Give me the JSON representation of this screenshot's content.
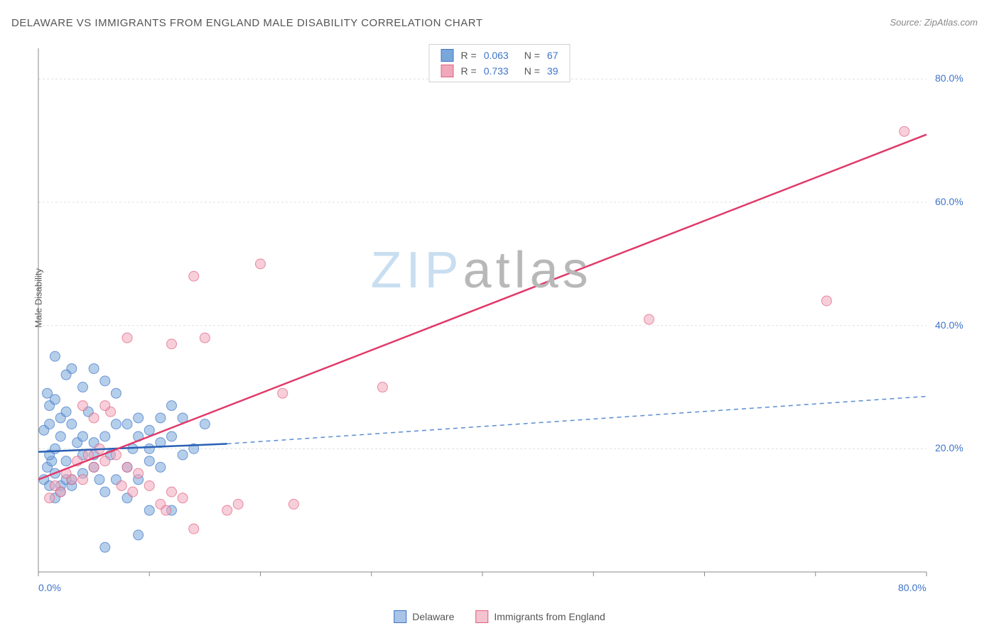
{
  "title": "DELAWARE VS IMMIGRANTS FROM ENGLAND MALE DISABILITY CORRELATION CHART",
  "source": "Source: ZipAtlas.com",
  "y_axis_label": "Male Disability",
  "watermark": {
    "part1": "ZIP",
    "part2": "atlas"
  },
  "chart": {
    "type": "scatter",
    "xlim": [
      0,
      80
    ],
    "ylim": [
      0,
      85
    ],
    "background_color": "#ffffff",
    "grid_color": "#e0e0e0",
    "axis_line_color": "#888888",
    "x_ticks": [
      0,
      10,
      20,
      30,
      40,
      50,
      60,
      70,
      80
    ],
    "x_tick_labels": {
      "0": "0.0%",
      "80": "80.0%"
    },
    "y_ticks": [
      20,
      40,
      60,
      80
    ],
    "y_tick_labels": {
      "20": "20.0%",
      "40": "40.0%",
      "60": "60.0%",
      "80": "80.0%"
    },
    "tick_label_color": "#3e74c9",
    "tick_label_fontsize": 14,
    "marker_radius": 7,
    "marker_opacity": 0.55,
    "series": [
      {
        "name": "Delaware",
        "fill_color": "#79a7d9",
        "stroke_color": "#3e74c9",
        "trend_color": "#2860b5",
        "trend_dash_color": "#5a8dd0",
        "R": "0.063",
        "N": "67",
        "trend_solid": {
          "x1": 0,
          "y1": 19.5,
          "x2": 17,
          "y2": 20.8
        },
        "trend_dash": {
          "x1": 17,
          "y1": 20.8,
          "x2": 80,
          "y2": 28.5
        },
        "points": [
          [
            0.5,
            15
          ],
          [
            1,
            14
          ],
          [
            1.5,
            16
          ],
          [
            0.8,
            17
          ],
          [
            1.2,
            18
          ],
          [
            2,
            14
          ],
          [
            2.5,
            15
          ],
          [
            1,
            19
          ],
          [
            1.5,
            20
          ],
          [
            2,
            22
          ],
          [
            0.5,
            23
          ],
          [
            1,
            24
          ],
          [
            2,
            25
          ],
          [
            3,
            24
          ],
          [
            2.5,
            26
          ],
          [
            1,
            27
          ],
          [
            1.5,
            28
          ],
          [
            0.8,
            29
          ],
          [
            3.5,
            21
          ],
          [
            4,
            22
          ],
          [
            5,
            17
          ],
          [
            5.5,
            15
          ],
          [
            6,
            22
          ],
          [
            7,
            24
          ],
          [
            8,
            17
          ],
          [
            9,
            25
          ],
          [
            10,
            23
          ],
          [
            11,
            21
          ],
          [
            3,
            33
          ],
          [
            5,
            33
          ],
          [
            1.5,
            35
          ],
          [
            2.5,
            32
          ],
          [
            4.5,
            26
          ],
          [
            6.5,
            19
          ],
          [
            8.5,
            20
          ],
          [
            12,
            22
          ],
          [
            13,
            25
          ],
          [
            14,
            20
          ],
          [
            15,
            24
          ],
          [
            9,
            15
          ],
          [
            10,
            18
          ],
          [
            7,
            29
          ],
          [
            6,
            31
          ],
          [
            4,
            30
          ],
          [
            2.5,
            18
          ],
          [
            3,
            14
          ],
          [
            4,
            16
          ],
          [
            5,
            19
          ],
          [
            6,
            13
          ],
          [
            7,
            15
          ],
          [
            12,
            10
          ],
          [
            10,
            10
          ],
          [
            8,
            12
          ],
          [
            9,
            6
          ],
          [
            6,
            4
          ],
          [
            1.5,
            12
          ],
          [
            2,
            13
          ],
          [
            3,
            15
          ],
          [
            4,
            19
          ],
          [
            5,
            21
          ],
          [
            11,
            17
          ],
          [
            13,
            19
          ],
          [
            8,
            24
          ],
          [
            9,
            22
          ],
          [
            10,
            20
          ],
          [
            11,
            25
          ],
          [
            12,
            27
          ]
        ]
      },
      {
        "name": "Immigrants from England",
        "fill_color": "#f0a8bb",
        "stroke_color": "#e0607f",
        "trend_color": "#e03a6a",
        "R": "0.733",
        "N": "39",
        "trend_solid": {
          "x1": 0,
          "y1": 15,
          "x2": 80,
          "y2": 71
        },
        "points": [
          [
            1,
            12
          ],
          [
            2,
            13
          ],
          [
            1.5,
            14
          ],
          [
            3,
            15
          ],
          [
            2.5,
            16
          ],
          [
            4,
            15
          ],
          [
            3.5,
            18
          ],
          [
            5,
            17
          ],
          [
            4.5,
            19
          ],
          [
            6,
            18
          ],
          [
            5.5,
            20
          ],
          [
            7,
            19
          ],
          [
            6.5,
            26
          ],
          [
            8,
            17
          ],
          [
            7.5,
            14
          ],
          [
            9,
            16
          ],
          [
            8.5,
            13
          ],
          [
            10,
            14
          ],
          [
            11,
            11
          ],
          [
            12,
            13
          ],
          [
            11.5,
            10
          ],
          [
            13,
            12
          ],
          [
            14,
            7
          ],
          [
            4,
            27
          ],
          [
            5,
            25
          ],
          [
            6,
            27
          ],
          [
            8,
            38
          ],
          [
            12,
            37
          ],
          [
            15,
            38
          ],
          [
            14,
            48
          ],
          [
            20,
            50
          ],
          [
            22,
            29
          ],
          [
            23,
            11
          ],
          [
            31,
            30
          ],
          [
            17,
            10
          ],
          [
            18,
            11
          ],
          [
            55,
            41
          ],
          [
            71,
            44
          ],
          [
            78,
            71.5
          ]
        ]
      }
    ]
  },
  "legend_bottom": [
    {
      "label": "Delaware",
      "fill": "#a8c5e8",
      "stroke": "#3e74c9"
    },
    {
      "label": "Immigrants from England",
      "fill": "#f5c2d0",
      "stroke": "#e0607f"
    }
  ]
}
